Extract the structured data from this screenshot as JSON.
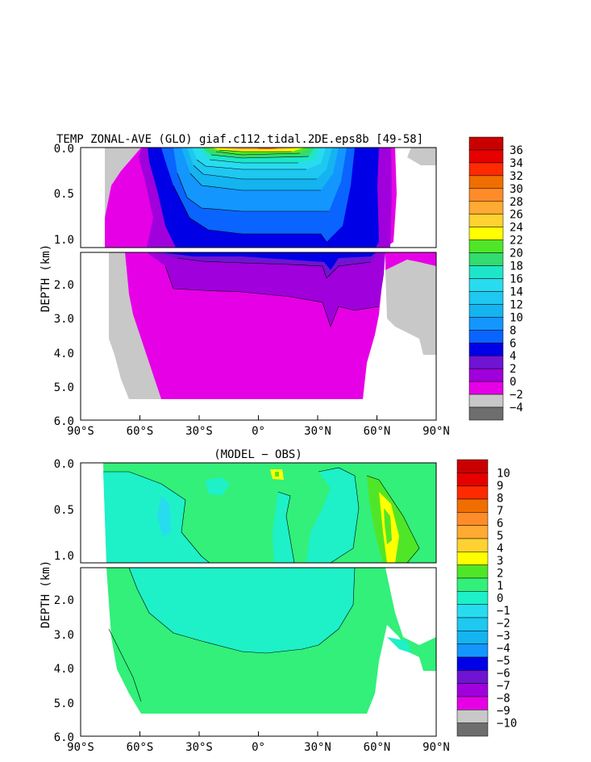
{
  "chart_data": [
    {
      "type": "heatmap",
      "title": "TEMP ZONAL-AVE (GLO) giaf.c112.tidal.2DE.eps8b [49-58]",
      "ylabel": "DEPTH (km)",
      "xlabel": "",
      "x_ticks": [
        "90°S",
        "60°S",
        "30°S",
        "0°",
        "30°N",
        "60°N",
        "90°N"
      ],
      "y_ticks_upper": [
        "0.0",
        "0.5",
        "1.0"
      ],
      "y_ticks_lower": [
        "2.0",
        "3.0",
        "4.0",
        "5.0",
        "6.0"
      ],
      "xlim": [
        -90,
        90
      ],
      "ylim_km": [
        6.0,
        0.0
      ],
      "colorbar": {
        "labels": [
          "36",
          "34",
          "32",
          "30",
          "28",
          "26",
          "24",
          "22",
          "20",
          "18",
          "16",
          "14",
          "12",
          "10",
          "8",
          "6",
          "4",
          "2",
          "0",
          "−2",
          "−4"
        ],
        "colors": [
          "#c80000",
          "#e60000",
          "#ff2a00",
          "#f06e00",
          "#ff8c28",
          "#ffaa32",
          "#ffd232",
          "#ffff00",
          "#50e628",
          "#32dc6e",
          "#1ee6c8",
          "#28dcf0",
          "#1ec8f0",
          "#14b4f0",
          "#1496ff",
          "#0a64ff",
          "#0000e6",
          "#6e14d2",
          "#a000dc",
          "#e600e6",
          "#c8c8c8",
          "#6e6e6e"
        ]
      }
    },
    {
      "type": "heatmap",
      "title": "(MODEL − OBS)",
      "ylabel": "DEPTH (km)",
      "xlabel": "",
      "x_ticks": [
        "90°S",
        "60°S",
        "30°S",
        "0°",
        "30°N",
        "60°N",
        "90°N"
      ],
      "y_ticks_upper": [
        "0.0",
        "0.5",
        "1.0"
      ],
      "y_ticks_lower": [
        "2.0",
        "3.0",
        "4.0",
        "5.0",
        "6.0"
      ],
      "xlim": [
        -90,
        90
      ],
      "ylim_km": [
        6.0,
        0.0
      ],
      "colorbar": {
        "labels": [
          "10",
          "9",
          "8",
          "7",
          "6",
          "5",
          "4",
          "3",
          "2",
          "1",
          "0",
          "−1",
          "−2",
          "−3",
          "−4",
          "−5",
          "−6",
          "−7",
          "−8",
          "−9",
          "−10"
        ],
        "colors": [
          "#c80000",
          "#e60000",
          "#ff2a00",
          "#f06e00",
          "#ff8c28",
          "#ffaa32",
          "#ffd232",
          "#ffff00",
          "#50e628",
          "#32f07a",
          "#1ef0c8",
          "#28dcf0",
          "#1ec8f0",
          "#14b4f0",
          "#1496ff",
          "#0000e6",
          "#6e14d2",
          "#a000dc",
          "#e600e6",
          "#c8c8c8",
          "#6e6e6e"
        ]
      }
    }
  ]
}
